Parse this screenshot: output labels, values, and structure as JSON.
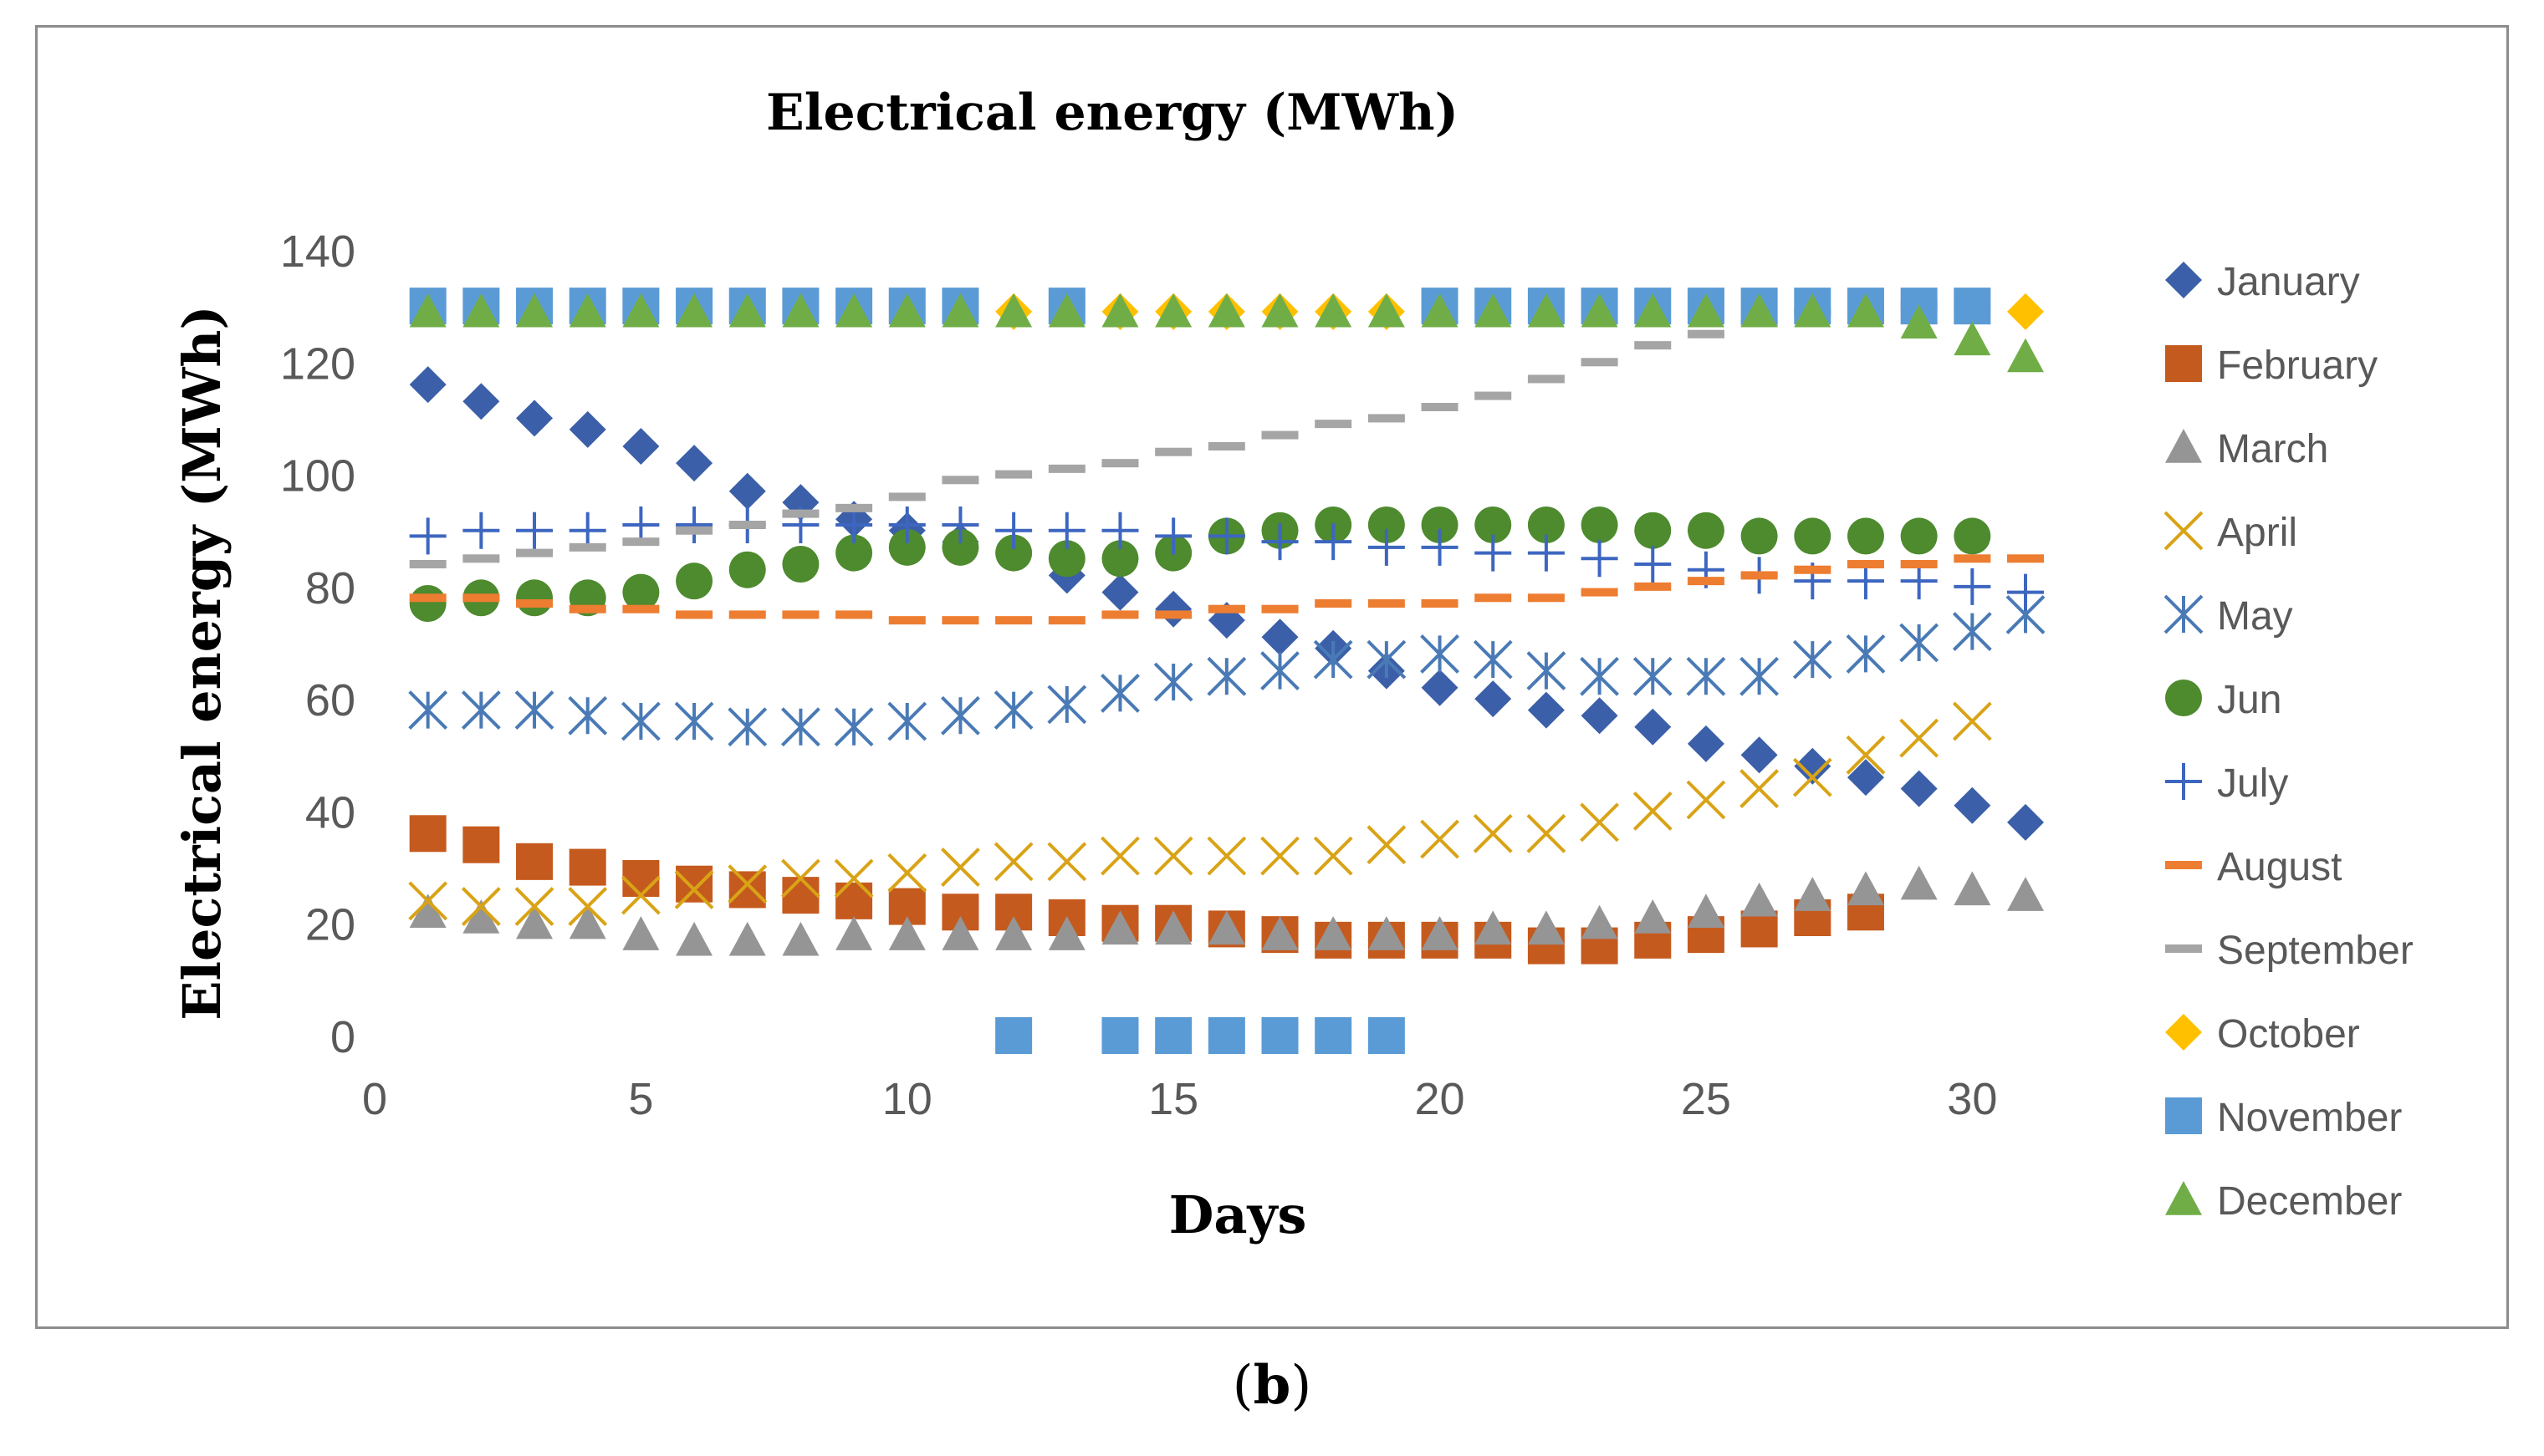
{
  "chart_data": {
    "type": "scatter",
    "title": "Electrical energy (MWh)",
    "xlabel": "Days",
    "ylabel": "Electrical energy (MWh)",
    "xlim": [
      0,
      31
    ],
    "ylim": [
      0,
      140
    ],
    "xticks": [
      0,
      5,
      10,
      15,
      20,
      25,
      30
    ],
    "yticks": [
      0,
      20,
      40,
      60,
      80,
      100,
      120,
      140
    ],
    "legend_position": "right",
    "series": [
      {
        "name": "January",
        "color": "#3b5fa8",
        "marker": "diamond",
        "x": [
          1,
          2,
          3,
          4,
          5,
          6,
          7,
          8,
          9,
          10,
          11,
          12,
          13,
          14,
          15,
          16,
          17,
          18,
          19,
          20,
          21,
          22,
          23,
          24,
          25,
          26,
          27,
          28,
          29,
          30,
          31
        ],
        "y": [
          116,
          113,
          110,
          108,
          105,
          102,
          97,
          95,
          92,
          90,
          88,
          86,
          82,
          79,
          76,
          74,
          71,
          69,
          65,
          62,
          60,
          58,
          57,
          55,
          52,
          50,
          48,
          46,
          44,
          41,
          38
        ]
      },
      {
        "name": "February",
        "color": "#c55a1e",
        "marker": "square",
        "x": [
          1,
          2,
          3,
          4,
          5,
          6,
          7,
          8,
          9,
          10,
          11,
          12,
          13,
          14,
          15,
          16,
          17,
          18,
          19,
          20,
          21,
          22,
          23,
          24,
          25,
          26,
          27,
          28
        ],
        "y": [
          36,
          34,
          31,
          30,
          28,
          27,
          26,
          25,
          24,
          23,
          22,
          22,
          21,
          20,
          20,
          19,
          18,
          17,
          17,
          17,
          17,
          16,
          16,
          17,
          18,
          19,
          21,
          22
        ]
      },
      {
        "name": "March",
        "color": "#959595",
        "marker": "triangle",
        "x": [
          1,
          2,
          3,
          4,
          5,
          6,
          7,
          8,
          9,
          10,
          11,
          12,
          13,
          14,
          15,
          16,
          17,
          18,
          19,
          20,
          21,
          22,
          23,
          24,
          25,
          26,
          27,
          28,
          29,
          30,
          31
        ],
        "y": [
          22,
          21,
          20,
          20,
          18,
          17,
          17,
          17,
          18,
          18,
          18,
          18,
          18,
          19,
          19,
          19,
          18,
          18,
          18,
          18,
          19,
          19,
          20,
          21,
          22,
          24,
          25,
          26,
          27,
          26,
          25
        ]
      },
      {
        "name": "April",
        "color": "#d9a316",
        "marker": "x",
        "x": [
          1,
          2,
          3,
          4,
          5,
          6,
          7,
          8,
          9,
          10,
          11,
          12,
          13,
          14,
          15,
          16,
          17,
          18,
          19,
          20,
          21,
          22,
          23,
          24,
          25,
          26,
          27,
          28,
          29,
          30
        ],
        "y": [
          24,
          23,
          23,
          23,
          25,
          26,
          27,
          28,
          28,
          29,
          30,
          31,
          31,
          32,
          32,
          32,
          32,
          32,
          34,
          35,
          36,
          36,
          38,
          40,
          42,
          44,
          46,
          50,
          53,
          56
        ]
      },
      {
        "name": "May",
        "color": "#4a7ab5",
        "marker": "asterisk",
        "x": [
          1,
          2,
          3,
          4,
          5,
          6,
          7,
          8,
          9,
          10,
          11,
          12,
          13,
          14,
          15,
          16,
          17,
          18,
          19,
          20,
          21,
          22,
          23,
          24,
          25,
          26,
          27,
          28,
          29,
          30,
          31
        ],
        "y": [
          58,
          58,
          58,
          57,
          56,
          56,
          55,
          55,
          55,
          56,
          57,
          58,
          59,
          61,
          63,
          64,
          65,
          67,
          67,
          68,
          67,
          65,
          64,
          64,
          64,
          64,
          67,
          68,
          70,
          72,
          75
        ]
      },
      {
        "name": "Jun",
        "color": "#4e8a2e",
        "marker": "circle",
        "x": [
          1,
          2,
          3,
          4,
          5,
          6,
          7,
          8,
          9,
          10,
          11,
          12,
          13,
          14,
          15,
          16,
          17,
          18,
          19,
          20,
          21,
          22,
          23,
          24,
          25,
          26,
          27,
          28,
          29,
          30
        ],
        "y": [
          77,
          78,
          78,
          78,
          79,
          81,
          83,
          84,
          86,
          87,
          87,
          86,
          85,
          85,
          86,
          89,
          90,
          91,
          91,
          91,
          91,
          91,
          91,
          90,
          90,
          89,
          89,
          89,
          89,
          89
        ]
      },
      {
        "name": "July",
        "color": "#3d66c0",
        "marker": "plus",
        "x": [
          1,
          2,
          3,
          4,
          5,
          6,
          7,
          8,
          9,
          10,
          11,
          12,
          13,
          14,
          15,
          16,
          17,
          18,
          19,
          20,
          21,
          22,
          23,
          24,
          25,
          26,
          27,
          28,
          29,
          30,
          31
        ],
        "y": [
          89,
          90,
          90,
          90,
          91,
          91,
          91,
          91,
          91,
          91,
          91,
          90,
          90,
          90,
          89,
          89,
          88,
          88,
          87,
          87,
          86,
          86,
          85,
          84,
          83,
          82,
          81,
          81,
          81,
          80,
          79
        ]
      },
      {
        "name": "August",
        "color": "#ed7d31",
        "marker": "dash",
        "x": [
          1,
          2,
          3,
          4,
          5,
          6,
          7,
          8,
          9,
          10,
          11,
          12,
          13,
          14,
          15,
          16,
          17,
          18,
          19,
          20,
          21,
          22,
          23,
          24,
          25,
          26,
          27,
          28,
          29,
          30,
          31
        ],
        "y": [
          78,
          78,
          77,
          76,
          76,
          75,
          75,
          75,
          75,
          74,
          74,
          74,
          74,
          75,
          75,
          76,
          76,
          77,
          77,
          77,
          78,
          78,
          79,
          80,
          81,
          82,
          83,
          84,
          84,
          85,
          85
        ]
      },
      {
        "name": "September",
        "color": "#a5a5a5",
        "marker": "dash",
        "x": [
          1,
          2,
          3,
          4,
          5,
          6,
          7,
          8,
          9,
          10,
          11,
          12,
          13,
          14,
          15,
          16,
          17,
          18,
          19,
          20,
          21,
          22,
          23,
          24,
          25,
          26,
          27,
          28,
          29,
          30
        ],
        "y": [
          84,
          85,
          86,
          87,
          88,
          90,
          91,
          93,
          94,
          96,
          99,
          100,
          101,
          102,
          104,
          105,
          107,
          109,
          110,
          112,
          114,
          117,
          120,
          123,
          125,
          127,
          129,
          130,
          130,
          130
        ]
      },
      {
        "name": "October",
        "color": "#ffc000",
        "marker": "diamond",
        "x": [
          12,
          14,
          15,
          16,
          17,
          18,
          19,
          31
        ],
        "y": [
          129,
          129,
          129,
          129,
          129,
          129,
          129,
          129
        ]
      },
      {
        "name": "November",
        "color": "#5b9bd5",
        "marker": "square",
        "x": [
          1,
          2,
          3,
          4,
          5,
          6,
          7,
          8,
          9,
          10,
          11,
          12,
          13,
          14,
          15,
          16,
          17,
          18,
          19,
          20,
          21,
          22,
          23,
          24,
          25,
          26,
          27,
          28,
          29,
          30
        ],
        "y": [
          130,
          130,
          130,
          130,
          130,
          130,
          130,
          130,
          130,
          130,
          130,
          0,
          130,
          0,
          0,
          0,
          0,
          0,
          0,
          130,
          130,
          130,
          130,
          130,
          130,
          130,
          130,
          130,
          130,
          130
        ]
      },
      {
        "name": "December",
        "color": "#70ad47",
        "marker": "triangle",
        "x": [
          1,
          2,
          3,
          4,
          5,
          6,
          7,
          8,
          9,
          10,
          11,
          12,
          13,
          14,
          15,
          16,
          17,
          18,
          19,
          20,
          21,
          22,
          23,
          24,
          25,
          26,
          27,
          28,
          29,
          30,
          31
        ],
        "y": [
          129,
          129,
          129,
          129,
          129,
          129,
          129,
          129,
          129,
          129,
          129,
          129,
          129,
          129,
          129,
          129,
          129,
          129,
          129,
          129,
          129,
          129,
          129,
          129,
          129,
          129,
          129,
          129,
          127,
          124,
          121
        ]
      }
    ]
  },
  "caption": {
    "label": "b",
    "open": "(",
    "close": ")"
  }
}
